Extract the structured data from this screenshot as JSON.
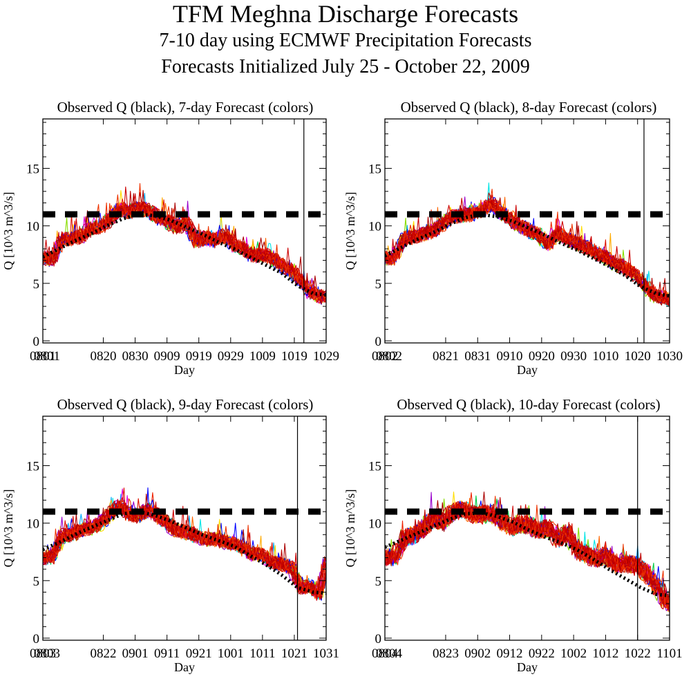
{
  "titles": {
    "main": "TFM Meghna Discharge Forecasts",
    "sub1": "7-10 day using ECMWF Precipitation Forecasts",
    "sub2": "Forecasts Initialized July 25 - October 22, 2009"
  },
  "chart_data": [
    {
      "type": "line",
      "title": "Observed Q (black), 7-day Forecast (colors)",
      "xlabel": "Day",
      "ylabel": "Q [10^3 m^3/s]",
      "ylim": [
        0,
        19.3
      ],
      "yticks": [
        0,
        5,
        10,
        15
      ],
      "x_start": "0801",
      "x_end": "1029",
      "n_days": 89,
      "xtick_labels": [
        "0801",
        "0820",
        "0830",
        "0909",
        "0919",
        "0929",
        "1009",
        "1019",
        "1029"
      ],
      "xtick_days": [
        0,
        19,
        29,
        39,
        49,
        59,
        69,
        79,
        89
      ],
      "first_label_overlap": "0801",
      "threshold_level": 11.0,
      "forecast_end_marker_day": 82,
      "observed": {
        "days": [
          0,
          5,
          10,
          15,
          20,
          25,
          30,
          35,
          40,
          45,
          50,
          55,
          60,
          65,
          70,
          75,
          80,
          85,
          89
        ],
        "values": [
          7.3,
          8.0,
          8.7,
          9.3,
          10.0,
          10.6,
          11.0,
          10.9,
          10.5,
          9.9,
          9.3,
          8.6,
          8.0,
          7.3,
          6.6,
          5.9,
          4.8,
          4.1,
          4.0
        ]
      },
      "forecast_ensemble": {
        "days": [
          0,
          3,
          6,
          9,
          12,
          15,
          18,
          21,
          24,
          27,
          30,
          33,
          36,
          39,
          42,
          45,
          48,
          51,
          54,
          57,
          60,
          63,
          66,
          69,
          72,
          75,
          78,
          81,
          84,
          87,
          89
        ],
        "values": [
          7.2,
          7.1,
          8.8,
          8.9,
          9.1,
          9.8,
          9.9,
          10.6,
          11.5,
          11.2,
          11.6,
          11.3,
          10.8,
          10.4,
          9.9,
          10.3,
          8.6,
          9.0,
          8.7,
          9.2,
          8.3,
          8.0,
          7.4,
          7.5,
          7.2,
          6.6,
          6.1,
          5.2,
          4.2,
          3.9,
          3.7
        ],
        "spread": 0.8
      }
    },
    {
      "type": "line",
      "title": "Observed Q (black), 8-day Forecast (colors)",
      "xlabel": "Day",
      "ylabel": "Q [10^3 m^3/s]",
      "ylim": [
        0,
        19.3
      ],
      "yticks": [
        0,
        5,
        10,
        15
      ],
      "x_start": "0802",
      "x_end": "1030",
      "n_days": 89,
      "xtick_labels": [
        "0802",
        "0821",
        "0831",
        "0910",
        "0920",
        "0930",
        "1010",
        "1020",
        "1030"
      ],
      "xtick_days": [
        0,
        19,
        29,
        39,
        49,
        59,
        69,
        79,
        89
      ],
      "threshold_level": 11.0,
      "forecast_end_marker_day": 81,
      "observed": {
        "days": [
          0,
          5,
          10,
          15,
          20,
          25,
          30,
          35,
          40,
          45,
          50,
          55,
          60,
          65,
          70,
          75,
          80,
          85,
          89
        ],
        "values": [
          7.4,
          8.1,
          8.8,
          9.4,
          10.1,
          10.7,
          11.0,
          10.8,
          10.4,
          9.8,
          9.2,
          8.5,
          7.9,
          7.2,
          6.5,
          5.7,
          4.7,
          4.1,
          3.9
        ]
      },
      "forecast_ensemble": {
        "days": [
          0,
          3,
          6,
          9,
          12,
          15,
          18,
          21,
          24,
          27,
          30,
          33,
          36,
          39,
          42,
          45,
          48,
          51,
          54,
          57,
          60,
          63,
          66,
          69,
          72,
          75,
          78,
          81,
          84,
          87,
          89
        ],
        "values": [
          7.2,
          7.2,
          8.9,
          9.0,
          9.3,
          9.6,
          10.2,
          10.8,
          10.9,
          11.0,
          11.3,
          12.0,
          11.2,
          10.6,
          10.0,
          9.6,
          9.2,
          8.4,
          9.4,
          8.8,
          8.5,
          8.1,
          7.6,
          7.3,
          6.7,
          6.3,
          5.9,
          4.8,
          4.0,
          3.7,
          3.6
        ],
        "spread": 0.8
      }
    },
    {
      "type": "line",
      "title": "Observed Q (black), 9-day Forecast (colors)",
      "xlabel": "Day",
      "ylabel": "Q [10^3 m^3/s]",
      "ylim": [
        0,
        19.3
      ],
      "yticks": [
        0,
        5,
        10,
        15
      ],
      "x_start": "0803",
      "x_end": "1031",
      "n_days": 89,
      "xtick_labels": [
        "0803",
        "0822",
        "0901",
        "0911",
        "0921",
        "1001",
        "1011",
        "1021",
        "1031"
      ],
      "xtick_days": [
        0,
        19,
        29,
        39,
        49,
        59,
        69,
        79,
        89
      ],
      "threshold_level": 11.0,
      "forecast_end_marker_day": 80,
      "observed": {
        "days": [
          0,
          5,
          10,
          15,
          20,
          25,
          30,
          35,
          40,
          45,
          50,
          55,
          60,
          65,
          70,
          75,
          80,
          85,
          89
        ],
        "values": [
          7.7,
          8.3,
          9.0,
          9.6,
          10.2,
          10.8,
          11.0,
          10.7,
          10.2,
          9.6,
          9.0,
          8.5,
          8.0,
          7.2,
          6.4,
          5.5,
          4.4,
          4.0,
          3.9
        ]
      },
      "forecast_ensemble": {
        "days": [
          0,
          3,
          6,
          9,
          12,
          15,
          18,
          21,
          24,
          27,
          30,
          33,
          36,
          39,
          42,
          45,
          48,
          51,
          54,
          57,
          60,
          63,
          66,
          69,
          72,
          75,
          78,
          81,
          84,
          87,
          89
        ],
        "values": [
          7.0,
          7.0,
          8.9,
          9.0,
          9.4,
          9.6,
          10.0,
          10.8,
          11.5,
          10.8,
          10.6,
          11.2,
          10.7,
          10.0,
          9.4,
          9.2,
          8.9,
          8.6,
          8.6,
          8.4,
          8.2,
          7.8,
          7.3,
          7.2,
          6.6,
          6.4,
          6.2,
          4.4,
          4.5,
          3.8,
          6.5
        ],
        "spread": 0.8
      }
    },
    {
      "type": "line",
      "title": "Observed Q (black), 10-day Forecast (colors)",
      "xlabel": "Day",
      "ylabel": "Q [10^3 m^3/s]",
      "ylim": [
        0,
        19.3
      ],
      "yticks": [
        0,
        5,
        10,
        15
      ],
      "x_start": "0804",
      "x_end": "1101",
      "n_days": 89,
      "xtick_labels": [
        "0804",
        "0823",
        "0902",
        "0912",
        "0922",
        "1002",
        "1012",
        "1022",
        "1101"
      ],
      "xtick_days": [
        0,
        19,
        29,
        39,
        49,
        59,
        69,
        79,
        89
      ],
      "threshold_level": 11.0,
      "forecast_end_marker_day": 79,
      "observed": {
        "days": [
          0,
          5,
          10,
          15,
          20,
          25,
          30,
          35,
          40,
          45,
          50,
          55,
          60,
          65,
          70,
          75,
          80,
          85,
          89
        ],
        "values": [
          7.9,
          8.5,
          9.1,
          9.7,
          10.3,
          10.8,
          10.9,
          10.6,
          10.1,
          9.4,
          8.8,
          8.3,
          7.7,
          6.9,
          6.0,
          5.2,
          4.4,
          3.8,
          3.7
        ]
      },
      "forecast_ensemble": {
        "days": [
          0,
          3,
          6,
          9,
          12,
          15,
          18,
          21,
          24,
          27,
          30,
          33,
          36,
          39,
          42,
          45,
          48,
          51,
          54,
          57,
          60,
          63,
          66,
          69,
          72,
          75,
          78,
          81,
          84,
          87,
          89
        ],
        "values": [
          7.0,
          7.1,
          8.7,
          9.0,
          9.6,
          10.4,
          10.0,
          11.0,
          11.2,
          10.8,
          10.7,
          10.9,
          10.3,
          9.6,
          9.9,
          9.8,
          9.4,
          9.6,
          8.6,
          9.2,
          7.6,
          7.3,
          6.9,
          7.2,
          6.4,
          6.5,
          6.4,
          5.8,
          4.9,
          3.5,
          3.0
        ],
        "spread": 1.0
      }
    }
  ],
  "colors": {
    "observed": "#000000",
    "threshold": "#000000",
    "ensemble": [
      "#0000ff",
      "#00aaff",
      "#00e5e5",
      "#00cc44",
      "#88dd00",
      "#ffdd00",
      "#ffaa00",
      "#ff6600",
      "#ee2200",
      "#cc0000",
      "#aa0000",
      "#dd00dd",
      "#9900cc"
    ]
  }
}
